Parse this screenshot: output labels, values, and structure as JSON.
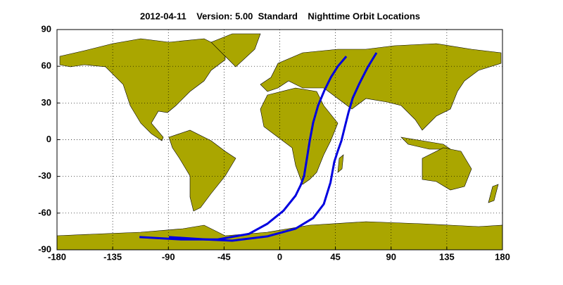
{
  "chart_data": {
    "type": "line",
    "title": "2012-04-11    Version: 5.00  Standard    Nighttime Orbit Locations",
    "xlim": [
      -180,
      180
    ],
    "xticks": [
      -180,
      -135,
      -90,
      -45,
      0,
      45,
      90,
      135,
      180
    ],
    "ylim": [
      -90,
      90
    ],
    "yticks": [
      -90,
      -60,
      -30,
      0,
      30,
      60,
      90
    ],
    "grid": true,
    "series": [
      {
        "color": "#0000e0",
        "x": [
          -113.4,
          -80,
          -50,
          -25,
          -10,
          3,
          12.8,
          17,
          19.7,
          22,
          24.2,
          27,
          31,
          36,
          41.3,
          47,
          53.8
        ],
        "values": [
          -79.6,
          -81.5,
          -81.5,
          -77,
          -68.7,
          -58,
          -45.7,
          -37,
          -29.6,
          -15,
          -0.9,
          14,
          27.9,
          40,
          50.9,
          60,
          68.1
        ]
      },
      {
        "color": "#0000e0",
        "x": [
          -89.6,
          -60,
          -38.4,
          -10,
          12.8,
          27,
          35.6,
          41,
          44.1,
          47,
          49.8,
          52.5,
          55.5,
          59,
          64,
          71,
          78.2
        ],
        "values": [
          -79.6,
          -81.5,
          -82.5,
          -79,
          -72.7,
          -64,
          -52.6,
          -35,
          -18.1,
          -9,
          -0.9,
          10,
          22.1,
          34,
          45.1,
          59,
          71
        ]
      }
    ]
  }
}
